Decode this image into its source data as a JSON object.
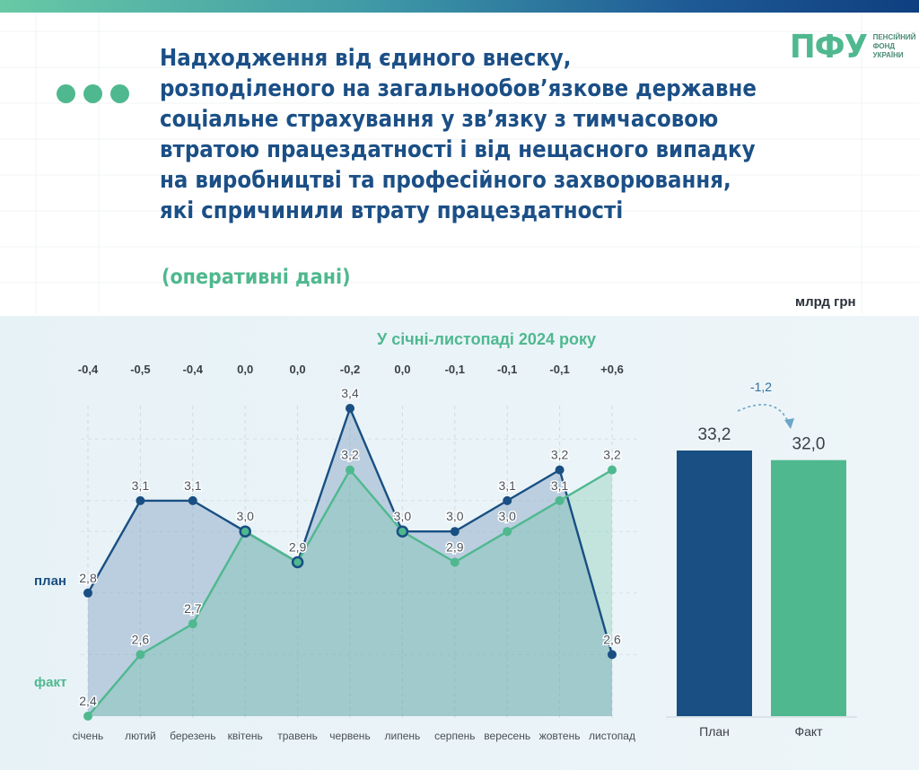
{
  "header": {
    "title_lines": [
      "Надходження від єдиного внеску,",
      "розподіленого на загальнообов’язкове державне",
      "соціальне страхування у зв’язку з тимчасовою",
      "втратою працездатності і від нещасного випадку",
      "на виробництві та професійного захворювання,",
      "які спричинили втрату працездатності"
    ],
    "subtitle": "(оперативні дані)",
    "unit": "млрд грн"
  },
  "logo": {
    "mark": "ПФУ",
    "lines": [
      "ПЕНСІЙНИЙ",
      "ФОНД",
      "УКРАЇНИ"
    ]
  },
  "colors": {
    "plan": "#194f82",
    "fact": "#4fb88f",
    "title": "#1b4f86",
    "panel": "#eaf4f8"
  },
  "chart_data": [
    {
      "type": "line",
      "title": "У січні-листопаді 2024 року",
      "categories": [
        "січень",
        "лютий",
        "березень",
        "квітень",
        "травень",
        "червень",
        "липень",
        "серпень",
        "вересень",
        "жовтень",
        "листопад"
      ],
      "series": [
        {
          "name": "план",
          "values": [
            2.8,
            3.1,
            3.1,
            3.0,
            2.9,
            3.4,
            3.0,
            3.0,
            3.1,
            3.2,
            2.6
          ]
        },
        {
          "name": "факт",
          "values": [
            2.4,
            2.6,
            2.7,
            3.0,
            2.9,
            3.2,
            3.0,
            2.9,
            3.0,
            3.1,
            3.2
          ]
        }
      ],
      "value_labels": {
        "план": [
          "2,8",
          "3,1",
          "3,1",
          "3,0",
          "2,9",
          "3,4",
          "3,0",
          "3,0",
          "3,1",
          "3,2",
          "2,6"
        ],
        "факт": [
          "2,4",
          "2,6",
          "2,7",
          "3,0",
          "2,9",
          "3,2",
          "3,0",
          "2,9",
          "3,0",
          "3,1",
          "3,2"
        ]
      },
      "differences": [
        -0.4,
        -0.5,
        -0.4,
        0.0,
        0.0,
        -0.2,
        0.0,
        -0.1,
        -0.1,
        -0.1,
        0.6
      ],
      "difference_labels": [
        "-0,4",
        "-0,5",
        "-0,4",
        "0,0",
        "0,0",
        "-0,2",
        "0,0",
        "-0,1",
        "-0,1",
        "-0,1",
        "+0,6"
      ],
      "ylim": [
        2.4,
        3.4
      ],
      "grid": true
    },
    {
      "type": "bar",
      "categories": [
        "План",
        "Факт"
      ],
      "values": [
        33.2,
        32.0
      ],
      "value_labels": [
        "33,2",
        "32,0"
      ],
      "difference": -1.2,
      "difference_label": "-1,2",
      "ylim": [
        0,
        33.2
      ]
    }
  ]
}
